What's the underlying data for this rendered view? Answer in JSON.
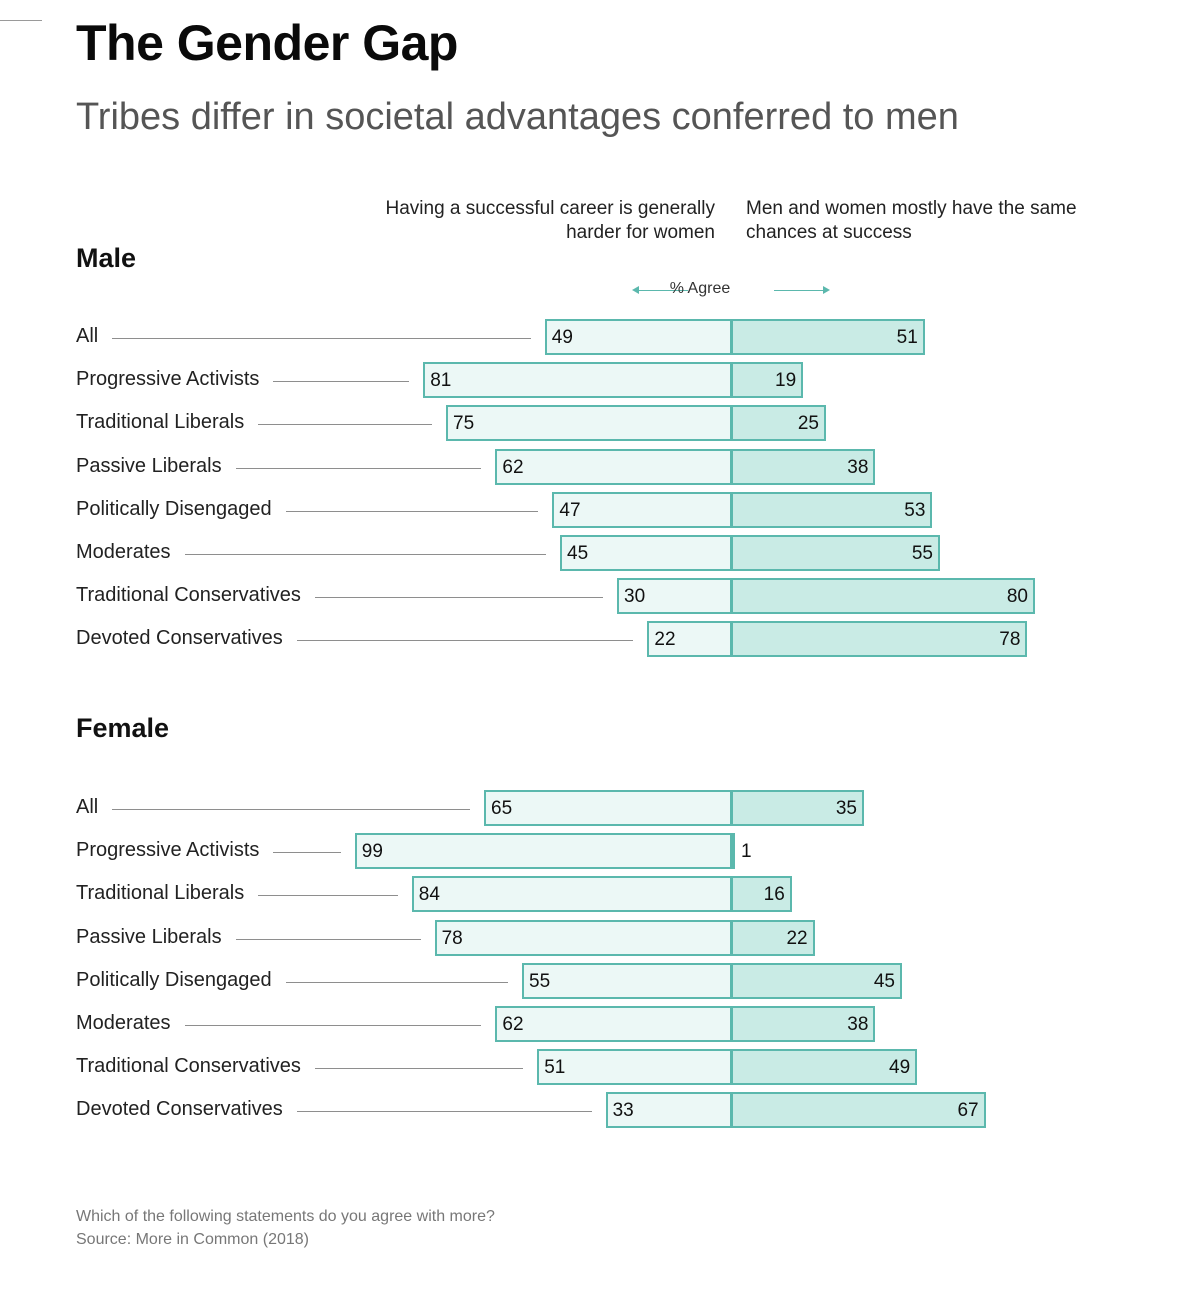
{
  "title": "The Gender Gap",
  "subtitle": "Tribes differ in societal advantages conferred to men",
  "columns": {
    "left_line1": "Having a successful career is generally",
    "left_line2": "harder for women",
    "right_line1": "Men and women mostly have the same",
    "right_line2": "chances at success"
  },
  "axis_note": "% Agree",
  "footer": {
    "question": "Which of the following statements do you agree with more?",
    "source": "Source: More in Common (2018)"
  },
  "colors": {
    "border": "#5bb8ad",
    "left_fill": "#ecf8f6",
    "right_fill": "#c9ebe5"
  },
  "chart_data": {
    "type": "bar",
    "orientation": "horizontal-diverging",
    "unit": "% Agree",
    "categories": [
      "All",
      "Progressive Activists",
      "Traditional Liberals",
      "Passive Liberals",
      "Politically Disengaged",
      "Moderates",
      "Traditional Conservatives",
      "Devoted Conservatives"
    ],
    "groups": [
      {
        "name": "Male",
        "harder_for_women": [
          49,
          81,
          75,
          62,
          47,
          45,
          30,
          22
        ],
        "same_chances": [
          51,
          19,
          25,
          38,
          53,
          55,
          80,
          78
        ]
      },
      {
        "name": "Female",
        "harder_for_women": [
          65,
          99,
          84,
          78,
          55,
          62,
          51,
          33
        ],
        "same_chances": [
          35,
          1,
          16,
          22,
          45,
          38,
          49,
          67
        ]
      }
    ]
  }
}
